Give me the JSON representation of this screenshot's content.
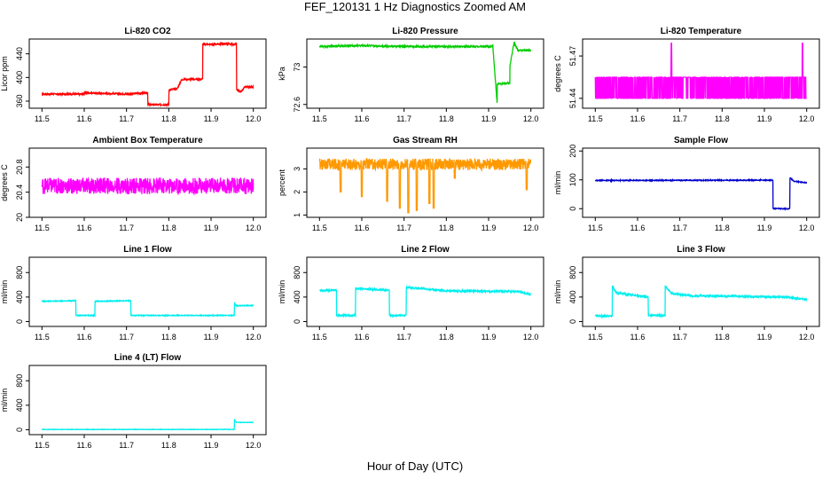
{
  "figure": {
    "title": "FEF_120131  1 Hz Diagnostics Zoomed AM",
    "xlabel": "Hour of Day (UTC)"
  },
  "chart_data": [
    {
      "type": "line",
      "title": "Li-820 CO2",
      "ylabel": "Licor ppm",
      "color": "#ff0000",
      "xlim": [
        11.47,
        12.03
      ],
      "ylim": [
        348,
        465
      ],
      "xticks": [
        11.5,
        11.6,
        11.7,
        11.8,
        11.9,
        12.0
      ],
      "yticks": [
        360,
        400,
        440
      ],
      "series": [
        {
          "x": [
            11.5,
            11.6,
            11.6,
            11.7,
            11.75,
            11.75,
            11.76,
            11.8,
            11.8,
            11.82,
            11.83,
            11.84,
            11.88,
            11.88,
            11.94,
            11.95,
            11.96,
            11.96,
            11.97,
            11.98,
            11.99,
            12.0
          ],
          "y": [
            372,
            372,
            374,
            372,
            374,
            354,
            354,
            354,
            379,
            381,
            396,
            397,
            397,
            456,
            457,
            456,
            457,
            380,
            375,
            384,
            384,
            384
          ],
          "noise": 1.2
        }
      ]
    },
    {
      "type": "line",
      "title": "Li-820 Pressure",
      "ylabel": "kPa",
      "color": "#00cc00",
      "xlim": [
        11.47,
        12.03
      ],
      "ylim": [
        72.56,
        73.3
      ],
      "xticks": [
        11.5,
        11.6,
        11.7,
        11.8,
        11.9,
        12.0
      ],
      "yticks": [
        72.6,
        73.0
      ],
      "series": [
        {
          "x": [
            11.5,
            11.6,
            11.7,
            11.8,
            11.9,
            11.91,
            11.92,
            11.92,
            11.93,
            11.95,
            11.95,
            11.96,
            11.97,
            11.98,
            12.0
          ],
          "y": [
            73.22,
            73.23,
            73.22,
            73.22,
            73.22,
            73.22,
            72.62,
            72.82,
            72.82,
            72.83,
            73.0,
            73.26,
            73.18,
            73.18,
            73.18
          ],
          "noise": 0.008
        }
      ]
    },
    {
      "type": "line",
      "title": "Li-820 Temperature",
      "ylabel": "degrees C",
      "color": "#ff00ff",
      "xlim": [
        11.47,
        12.03
      ],
      "ylim": [
        51.433,
        51.482
      ],
      "xticks": [
        11.5,
        11.6,
        11.7,
        11.8,
        11.9,
        12.0
      ],
      "yticks": [
        51.44,
        51.47
      ],
      "series": [
        {
          "x": [
            11.5,
            12.0
          ],
          "y": [
            51.44,
            51.44
          ],
          "toggle_to": 51.455,
          "spikes": [
            11.68,
            11.99
          ],
          "spike_value": 51.479
        }
      ]
    },
    {
      "type": "line",
      "title": "Ambient Box Temperature",
      "ylabel": "degrees C",
      "color": "#ff00ff",
      "xlim": [
        11.47,
        12.03
      ],
      "ylim": [
        20.0,
        21.1
      ],
      "xticks": [
        11.5,
        11.6,
        11.7,
        11.8,
        11.9,
        12.0
      ],
      "yticks": [
        20.0,
        20.4,
        20.8
      ],
      "series": [
        {
          "x": [
            11.5,
            12.0
          ],
          "y": [
            20.5,
            20.5
          ],
          "noise": 0.13
        }
      ]
    },
    {
      "type": "line",
      "title": "Gas Stream RH",
      "ylabel": "percent",
      "color": "#ff9900",
      "xlim": [
        11.47,
        12.03
      ],
      "ylim": [
        0.9,
        3.9
      ],
      "xticks": [
        11.5,
        11.6,
        11.7,
        11.8,
        11.9,
        12.0
      ],
      "yticks": [
        1.0,
        2.0,
        3.0
      ],
      "series": [
        {
          "x": [
            11.5,
            12.0
          ],
          "y": [
            3.2,
            3.2
          ],
          "noise": 0.25,
          "dips": [
            11.55,
            11.6,
            11.66,
            11.69,
            11.71,
            11.73,
            11.76,
            11.77,
            11.82,
            11.99
          ],
          "dip_values": [
            2.0,
            1.8,
            1.6,
            1.3,
            1.1,
            1.2,
            1.5,
            1.3,
            2.6,
            2.1
          ]
        }
      ]
    },
    {
      "type": "line",
      "title": "Sample Flow",
      "ylabel": "ml/min",
      "color": "#0000cc",
      "xlim": [
        11.47,
        12.03
      ],
      "ylim": [
        -30,
        210
      ],
      "xticks": [
        11.5,
        11.6,
        11.7,
        11.8,
        11.9,
        12.0
      ],
      "yticks": [
        0,
        100,
        200
      ],
      "series": [
        {
          "x": [
            11.5,
            11.9,
            11.92,
            11.92,
            11.96,
            11.96,
            11.97,
            12.0
          ],
          "y": [
            98,
            99,
            99,
            0,
            0,
            108,
            95,
            90
          ],
          "noise": 1.5
        }
      ]
    },
    {
      "type": "line",
      "title": "Line 1 Flow",
      "ylabel": "ml/min",
      "color": "#00eeee",
      "xlim": [
        11.47,
        12.03
      ],
      "ylim": [
        -80,
        1050
      ],
      "xticks": [
        11.5,
        11.6,
        11.7,
        11.8,
        11.9,
        12.0
      ],
      "yticks": [
        0,
        400,
        800
      ],
      "series": [
        {
          "x": [
            11.5,
            11.58,
            11.58,
            11.625,
            11.625,
            11.71,
            11.71,
            11.955,
            11.955,
            11.96,
            12.0
          ],
          "y": [
            330,
            340,
            100,
            100,
            330,
            340,
            100,
            100,
            300,
            260,
            260
          ],
          "noise": 6
        }
      ]
    },
    {
      "type": "line",
      "title": "Line 2 Flow",
      "ylabel": "ml/min",
      "color": "#00eeee",
      "xlim": [
        11.47,
        12.03
      ],
      "ylim": [
        -80,
        1050
      ],
      "xticks": [
        11.5,
        11.6,
        11.7,
        11.8,
        11.9,
        12.0
      ],
      "yticks": [
        0,
        400,
        800
      ],
      "series": [
        {
          "x": [
            11.5,
            11.54,
            11.54,
            11.585,
            11.585,
            11.665,
            11.665,
            11.705,
            11.705,
            11.8,
            11.97,
            12.0
          ],
          "y": [
            510,
            510,
            100,
            100,
            540,
            510,
            100,
            100,
            560,
            500,
            490,
            440
          ],
          "noise": 12
        }
      ]
    },
    {
      "type": "line",
      "title": "Line 3 Flow",
      "ylabel": "ml/min",
      "color": "#00eeee",
      "xlim": [
        11.47,
        12.03
      ],
      "ylim": [
        -80,
        1050
      ],
      "xticks": [
        11.5,
        11.6,
        11.7,
        11.8,
        11.9,
        12.0
      ],
      "yticks": [
        0,
        400,
        800
      ],
      "series": [
        {
          "x": [
            11.5,
            11.54,
            11.54,
            11.55,
            11.6,
            11.625,
            11.625,
            11.665,
            11.665,
            11.68,
            11.73,
            11.85,
            11.95,
            12.0
          ],
          "y": [
            90,
            90,
            580,
            470,
            420,
            400,
            100,
            100,
            580,
            460,
            420,
            410,
            400,
            360
          ],
          "noise": 14
        }
      ]
    },
    {
      "type": "line",
      "title": "Line 4 (LT) Flow",
      "ylabel": "ml/min",
      "color": "#00eeee",
      "xlim": [
        11.47,
        12.03
      ],
      "ylim": [
        -80,
        1050
      ],
      "xticks": [
        11.5,
        11.6,
        11.7,
        11.8,
        11.9,
        12.0
      ],
      "yticks": [
        0,
        400,
        800
      ],
      "series": [
        {
          "x": [
            11.5,
            11.955,
            11.955,
            11.96,
            12.0
          ],
          "y": [
            5,
            5,
            170,
            120,
            120
          ],
          "noise": 3
        }
      ]
    }
  ]
}
